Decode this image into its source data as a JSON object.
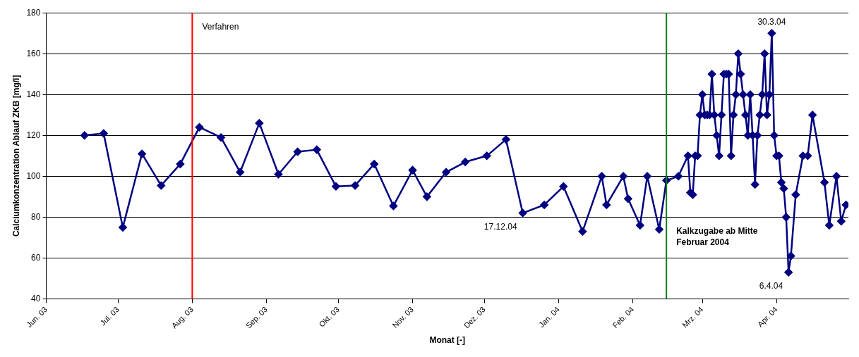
{
  "chart_data": {
    "type": "line",
    "xlabel": "Monat [-]",
    "ylabel": "Calciumkonzentration Ablauf ZKB [mg/l]",
    "x": [
      "2003-06-17",
      "2003-06-25",
      "2003-07-03",
      "2003-07-11",
      "2003-07-19",
      "2003-07-27",
      "2003-08-04",
      "2003-08-13",
      "2003-08-21",
      "2003-08-29",
      "2003-09-06",
      "2003-09-14",
      "2003-09-22",
      "2003-09-30",
      "2003-10-08",
      "2003-10-16",
      "2003-10-24",
      "2003-11-01",
      "2003-11-07",
      "2003-11-15",
      "2003-11-23",
      "2003-12-02",
      "2003-12-10",
      "2003-12-17",
      "2003-12-26",
      "2004-01-03",
      "2004-01-11",
      "2004-01-19",
      "2004-01-21",
      "2004-01-28",
      "2004-01-30",
      "2004-02-04",
      "2004-02-07",
      "2004-02-12",
      "2004-02-15",
      "2004-02-20",
      "2004-02-24",
      "2004-02-25",
      "2004-02-26",
      "2004-02-27",
      "2004-02-28",
      "2004-02-29",
      "2004-03-01",
      "2004-03-02",
      "2004-03-03",
      "2004-03-04",
      "2004-03-05",
      "2004-03-06",
      "2004-03-07",
      "2004-03-08",
      "2004-03-09",
      "2004-03-10",
      "2004-03-11",
      "2004-03-12",
      "2004-03-13",
      "2004-03-14",
      "2004-03-15",
      "2004-03-16",
      "2004-03-17",
      "2004-03-18",
      "2004-03-19",
      "2004-03-20",
      "2004-03-21",
      "2004-03-22",
      "2004-03-23",
      "2004-03-24",
      "2004-03-25",
      "2004-03-26",
      "2004-03-27",
      "2004-03-28",
      "2004-03-29",
      "2004-03-30",
      "2004-03-31",
      "2004-04-01",
      "2004-04-02",
      "2004-04-03",
      "2004-04-04",
      "2004-04-05",
      "2004-04-06",
      "2004-04-07",
      "2004-04-09",
      "2004-04-12",
      "2004-04-14",
      "2004-04-16",
      "2004-04-21",
      "2004-04-23",
      "2004-04-26",
      "2004-04-28",
      "2004-04-30"
    ],
    "series": [
      {
        "color": "#000080",
        "values": [
          120,
          121,
          75,
          111,
          95.5,
          106,
          124,
          119,
          102,
          126,
          101,
          112,
          113,
          95,
          95.5,
          106,
          85.5,
          103,
          90,
          102,
          107,
          110,
          118,
          82,
          86,
          95,
          73,
          100,
          86,
          100,
          89,
          76,
          100,
          74,
          98,
          100,
          110,
          92,
          91,
          110,
          110,
          130,
          140,
          130,
          130,
          130,
          150,
          130,
          120,
          110,
          130,
          150,
          150,
          150,
          110,
          130,
          140,
          160,
          150,
          140,
          130,
          120,
          140,
          120,
          96,
          120,
          130,
          140,
          160,
          130,
          140,
          170,
          120,
          110,
          110,
          97,
          94,
          80,
          53,
          61,
          91,
          110,
          110,
          130,
          97,
          76,
          100,
          78,
          86
        ]
      }
    ],
    "xlim": [
      "2003-06-01",
      "2004-05-01"
    ],
    "xticks": [
      {
        "value": "2003-06-01",
        "label": "Jun. 03"
      },
      {
        "value": "2003-07-01",
        "label": "Jul. 03"
      },
      {
        "value": "2003-08-01",
        "label": "Aug. 03"
      },
      {
        "value": "2003-09-01",
        "label": "Sep. 03"
      },
      {
        "value": "2003-10-01",
        "label": "Okt. 03"
      },
      {
        "value": "2003-11-01",
        "label": "Nov. 03"
      },
      {
        "value": "2003-12-01",
        "label": "Dez. 03"
      },
      {
        "value": "2004-01-01",
        "label": "Jan. 04"
      },
      {
        "value": "2004-02-01",
        "label": "Feb. 04"
      },
      {
        "value": "2004-03-01",
        "label": "Mrz. 04"
      },
      {
        "value": "2004-04-01",
        "label": "Apr. 04"
      }
    ],
    "ylim": [
      40,
      180
    ],
    "yticks": [
      40,
      60,
      80,
      100,
      120,
      140,
      160,
      180
    ],
    "grid": "y",
    "marker": "diamond",
    "line_style": "solid",
    "legend": false,
    "ref_lines": [
      {
        "axis": "x",
        "value": "2003-08-01",
        "label": "Verfahren",
        "color": "#ff0000"
      },
      {
        "axis": "x",
        "value": "2004-02-15",
        "label": "Kalkzugabe ab Mitte Februar 2004",
        "color": "#008000"
      }
    ],
    "annotations": [
      {
        "text": "17.12.04",
        "x": "2003-12-17",
        "y": 82
      },
      {
        "text": "30.3.04",
        "x": "2004-03-30",
        "y": 170
      },
      {
        "text": "6.4.04",
        "x": "2004-04-06",
        "y": 53
      }
    ]
  }
}
